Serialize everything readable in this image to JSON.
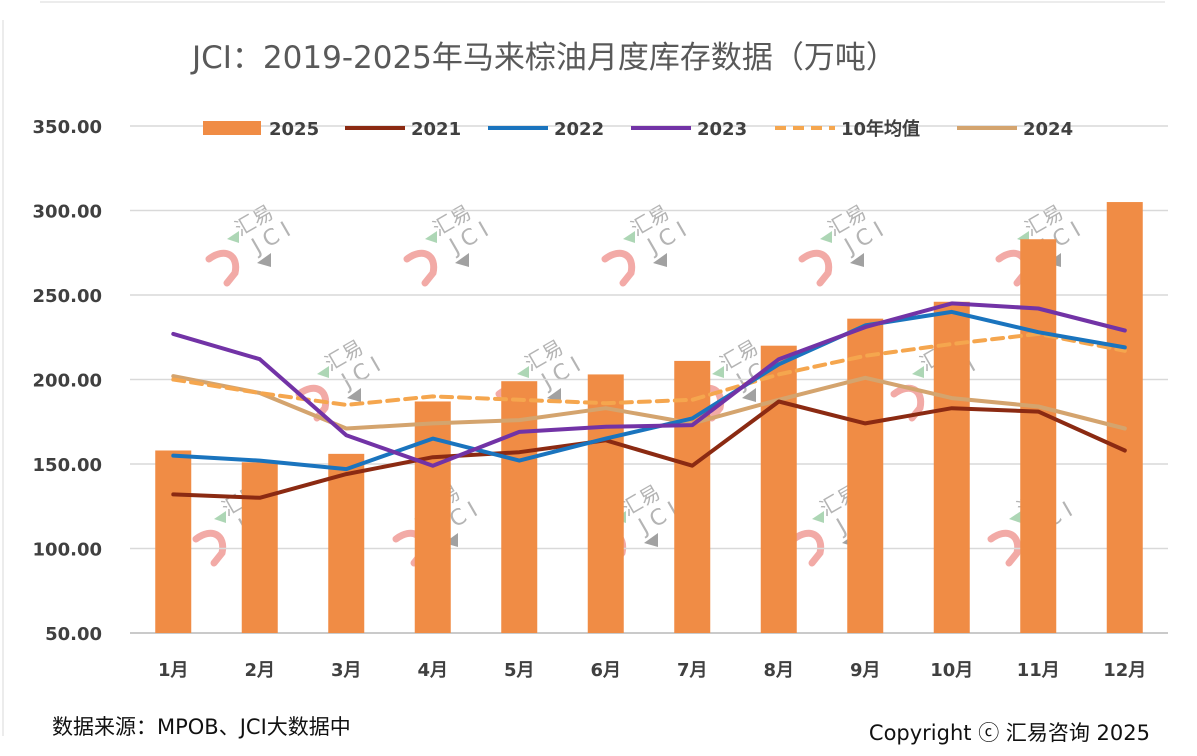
{
  "title": "JCI：2019-2025年马来棕油月度库存数据（万吨）",
  "source": "数据来源：MPOB、JCI大数据中",
  "copyright": "Copyright ⓒ 汇易咨询 2025",
  "watermark": {
    "cn": "汇易",
    "en": "JCI"
  },
  "chart_data": {
    "type": "bar",
    "categories": [
      "1月",
      "2月",
      "3月",
      "4月",
      "5月",
      "6月",
      "7月",
      "8月",
      "9月",
      "10月",
      "11月",
      "12月"
    ],
    "ylim": [
      50,
      350
    ],
    "yticks": [
      "50.00",
      "100.00",
      "150.00",
      "200.00",
      "250.00",
      "300.00",
      "350.00"
    ],
    "grid": true,
    "legend_position": "top",
    "series": [
      {
        "name": "2025",
        "type": "bar",
        "color": "#F08C45",
        "values": [
          158,
          151,
          156,
          187,
          199,
          203,
          211,
          220,
          236,
          246,
          283,
          305
        ]
      },
      {
        "name": "2021",
        "type": "line",
        "color": "#8B2A12",
        "dashed": false,
        "values": [
          132,
          130,
          144,
          154,
          157,
          164,
          149,
          187,
          174,
          183,
          181,
          158
        ]
      },
      {
        "name": "2022",
        "type": "line",
        "color": "#1A74BE",
        "dashed": false,
        "values": [
          155,
          152,
          147,
          165,
          152,
          165,
          177,
          209,
          232,
          240,
          228,
          219
        ]
      },
      {
        "name": "2023",
        "type": "line",
        "color": "#7233A6",
        "dashed": false,
        "values": [
          227,
          212,
          167,
          149,
          169,
          172,
          173,
          212,
          231,
          245,
          242,
          229
        ]
      },
      {
        "name": "10年均值",
        "type": "line",
        "color": "#F5A64E",
        "dashed": true,
        "values": [
          200,
          192,
          185,
          190,
          188,
          186,
          188,
          203,
          214,
          221,
          227,
          217
        ]
      },
      {
        "name": "2024",
        "type": "line",
        "color": "#D4A46E",
        "dashed": false,
        "values": [
          202,
          192,
          171,
          174,
          176,
          183,
          174,
          188,
          201,
          189,
          184,
          171
        ]
      }
    ]
  }
}
